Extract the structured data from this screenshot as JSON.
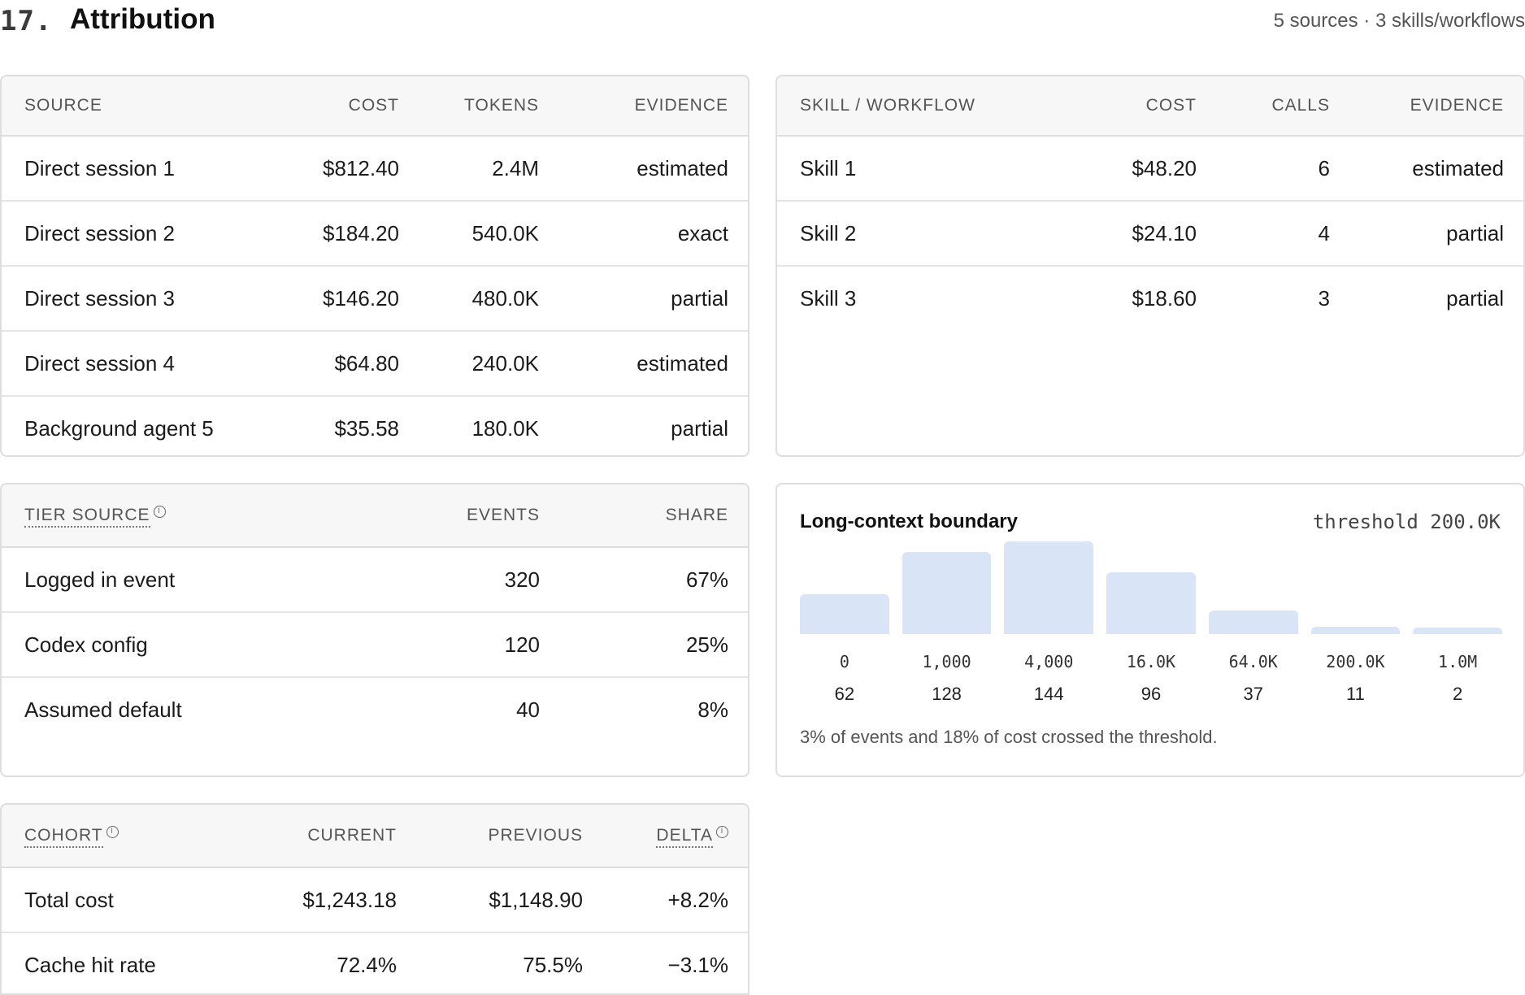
{
  "section": {
    "number": "17.",
    "title": "Attribution",
    "meta": "5 sources · 3 skills/workflows"
  },
  "sources": {
    "headers": [
      "SOURCE",
      "COST",
      "TOKENS",
      "EVIDENCE"
    ],
    "rows": [
      [
        "Direct session 1",
        "$812.40",
        "2.4M",
        "estimated"
      ],
      [
        "Direct session 2",
        "$184.20",
        "540.0K",
        "exact"
      ],
      [
        "Direct session 3",
        "$146.20",
        "480.0K",
        "partial"
      ],
      [
        "Direct session 4",
        "$64.80",
        "240.0K",
        "estimated"
      ],
      [
        "Background agent 5",
        "$35.58",
        "180.0K",
        "partial"
      ]
    ]
  },
  "skills": {
    "headers": [
      "SKILL / WORKFLOW",
      "COST",
      "CALLS",
      "EVIDENCE"
    ],
    "rows": [
      [
        "Skill 1",
        "$48.20",
        "6",
        "estimated"
      ],
      [
        "Skill 2",
        "$24.10",
        "4",
        "partial"
      ],
      [
        "Skill 3",
        "$18.60",
        "3",
        "partial"
      ]
    ]
  },
  "tier": {
    "headers": [
      "TIER SOURCE",
      "EVENTS",
      "SHARE"
    ],
    "rows": [
      [
        "Logged in event",
        "320",
        "67%"
      ],
      [
        "Codex config",
        "120",
        "25%"
      ],
      [
        "Assumed default",
        "40",
        "8%"
      ]
    ]
  },
  "long_context": {
    "title": "Long-context boundary",
    "threshold": "threshold 200.0K",
    "buckets": [
      {
        "label": "0",
        "count": "62",
        "value": 62
      },
      {
        "label": "1,000",
        "count": "128",
        "value": 128
      },
      {
        "label": "4,000",
        "count": "144",
        "value": 144
      },
      {
        "label": "16.0K",
        "count": "96",
        "value": 96
      },
      {
        "label": "64.0K",
        "count": "37",
        "value": 37
      },
      {
        "label": "200.0K",
        "count": "11",
        "value": 11
      },
      {
        "label": "1.0M",
        "count": "2",
        "value": 2
      }
    ],
    "bar_color": "#d9e5f6",
    "note": "3% of events and 18% of cost crossed the threshold."
  },
  "cohort": {
    "headers": [
      "COHORT",
      "CURRENT",
      "PREVIOUS",
      "DELTA"
    ],
    "rows": [
      [
        "Total cost",
        "$1,243.18",
        "$1,148.90",
        "+8.2%"
      ],
      [
        "Cache hit rate",
        "72.4%",
        "75.5%",
        "−3.1%"
      ]
    ]
  }
}
